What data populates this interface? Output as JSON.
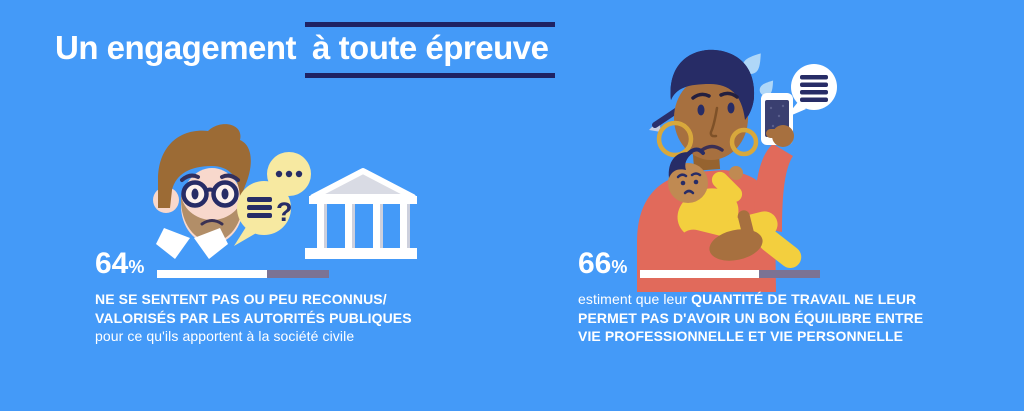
{
  "title": {
    "prefix": "Un engagement",
    "highlighted": "à toute épreuve"
  },
  "colors": {
    "background": "#449AF8",
    "navy_accent": "#1E2264",
    "bar_track": "#7B7394",
    "bar_fill": "#FFFFFF",
    "bubble_yellow": "#F7E9A1",
    "coral_top": "#E16A5B",
    "man_hair": "#9C6B35",
    "man_beard": "#B28E68",
    "man_skin": "#F8D8CC",
    "woman_skin": "#A7703F",
    "baby_skin": "#C08A52",
    "baby_outfit_yellow": "#F3CF3E",
    "building_gray": "#D9DBE4",
    "gold_earring": "#D8A83C",
    "sweat_drop_blue": "#AFD7F8"
  },
  "stats": {
    "left": {
      "value": "64",
      "unit": "%",
      "bar_percent": 64,
      "desc_bold_line1": "NE SE SENTENT PAS OU PEU RECONNUS/",
      "desc_bold_line2": "VALORISÉS PAR LES AUTORITÉS PUBLIQUES",
      "desc_regular_line3": "pour ce qu'ils apportent à la société civile"
    },
    "right": {
      "value": "66",
      "unit": "%",
      "bar_percent": 66,
      "desc_regular_lead": "estiment que leur ",
      "desc_bold_line1": "QUANTITÉ DE TRAVAIL NE LEUR",
      "desc_bold_line2": "PERMET PAS D'AVOIR UN BON ÉQUILIBRE ENTRE",
      "desc_bold_line3": "VIE PROFESSIONNELLE ET VIE PERSONNELLE"
    }
  },
  "illustrations": {
    "left": {
      "name": "man-with-speech-bubbles-and-institution-building",
      "question_glyph": "?"
    },
    "right": {
      "name": "woman-holding-baby-and-smartphone"
    }
  },
  "chart_data": {
    "type": "bar",
    "title": "Un engagement à toute épreuve",
    "unit": "%",
    "categories": [
      "Ne se sentent pas ou peu reconnus/valorisés par les autorités publiques pour ce qu'ils apportent à la société civile",
      "Estiment que leur quantité de travail ne leur permet pas d'avoir un bon équilibre entre vie professionnelle et vie personnelle"
    ],
    "values": [
      64,
      66
    ],
    "xlim": [
      0,
      100
    ],
    "legend": "none",
    "grid": false
  }
}
